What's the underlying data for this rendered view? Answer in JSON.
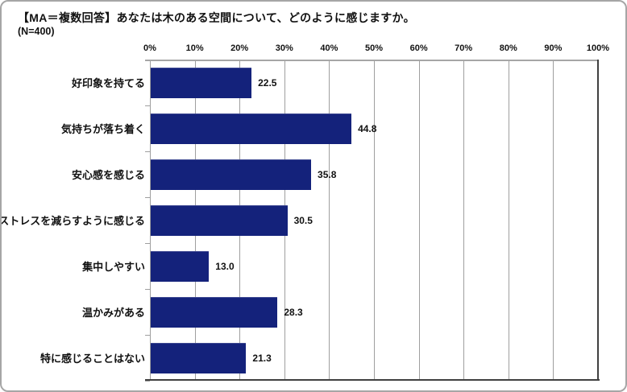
{
  "header": {
    "title": "【MA＝複数回答】あなたは木のある空間について、どのように感じますか。",
    "sample_size": "(N=400)"
  },
  "colors": {
    "bar": "#14227B",
    "gridline": "#9F9F9F",
    "axis_light": "#A6A6A6",
    "axis_dark": "#404040",
    "text": "#111111"
  },
  "chart_data": {
    "type": "bar",
    "orientation": "horizontal",
    "title": "【MA＝複数回答】あなたは木のある空間について、どのように感じますか。",
    "subtitle": "(N=400)",
    "categories": [
      "好印象を持てる",
      "気持ちが落ち着く",
      "安心感を感じる",
      "ストレスを減らすように感じる",
      "集中しやすい",
      "温かみがある",
      "特に感じることはない"
    ],
    "values": [
      22.5,
      44.8,
      35.8,
      30.5,
      13.0,
      28.3,
      21.3
    ],
    "value_labels": [
      "22.5",
      "44.8",
      "35.8",
      "30.5",
      "13.0",
      "28.3",
      "21.3"
    ],
    "xlabel": "",
    "ylabel": "",
    "xlim": [
      0,
      100
    ],
    "x_ticks": [
      "0%",
      "10%",
      "20%",
      "30%",
      "40%",
      "50%",
      "60%",
      "70%",
      "80%",
      "90%",
      "100%"
    ],
    "grid": true,
    "legend": "none",
    "axis_position": "top"
  }
}
